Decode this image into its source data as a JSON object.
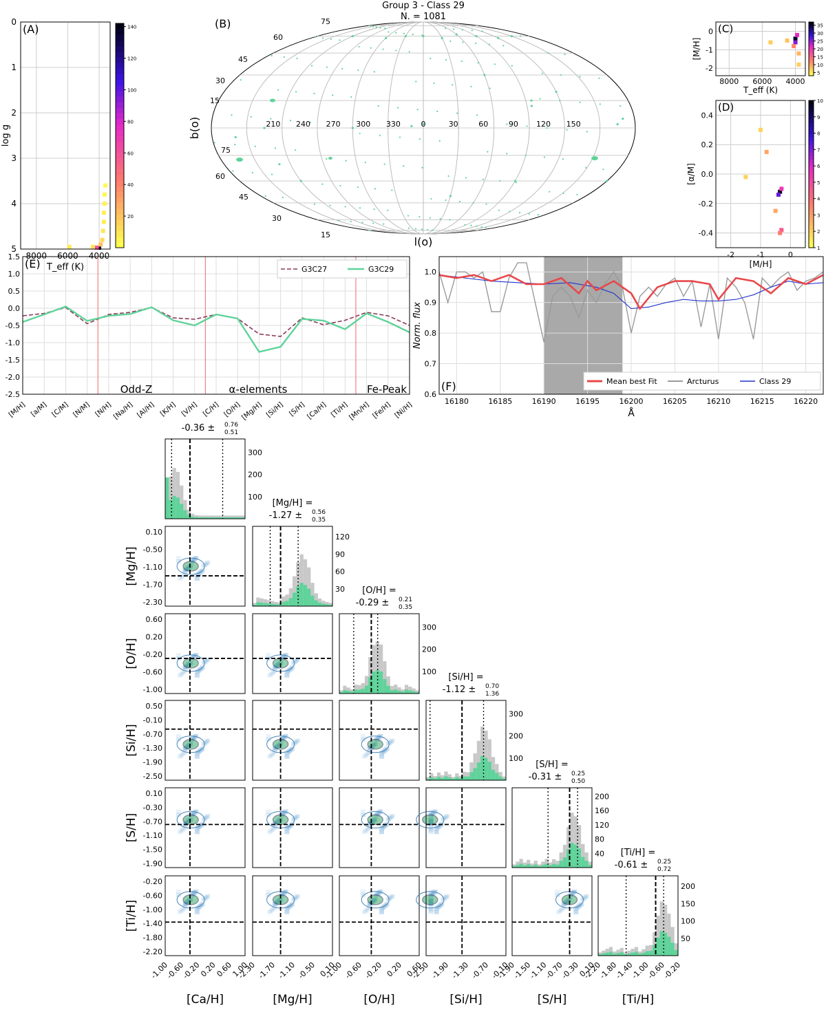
{
  "figure": {
    "title_line1": "Group 3 - Class 29",
    "title_line2": "N. = 1081"
  },
  "colors": {
    "green": "#5fd39a",
    "green_dark": "#2ca25f",
    "maroon": "#8b3a5a",
    "red_fit": "#e8474a",
    "grey_line": "#9a9a9a",
    "blue_line": "#2233cc",
    "shade": "#a9a9a9",
    "vline_red": "#f08080"
  },
  "chart_data": [
    {
      "panel": "A",
      "type": "heatmap",
      "xlabel": "T_eff (K)",
      "ylabel": "log g",
      "xlim": [
        9000,
        3300
      ],
      "ylim": [
        0,
        5
      ],
      "xticks": [
        "8000",
        "6000",
        "4000"
      ],
      "yticks": [
        "0",
        "1",
        "2",
        "3",
        "4",
        "5"
      ],
      "colorbar": {
        "min": 0,
        "max": 142,
        "ticks": [
          "20",
          "40",
          "60",
          "80",
          "100",
          "120",
          "140"
        ]
      },
      "cells": [
        {
          "x": 4000,
          "y": 4.97,
          "v": 140
        },
        {
          "x": 4150,
          "y": 4.97,
          "v": 60
        },
        {
          "x": 3900,
          "y": 4.9,
          "v": 20
        },
        {
          "x": 3800,
          "y": 4.8,
          "v": 12
        },
        {
          "x": 3750,
          "y": 4.6,
          "v": 8
        },
        {
          "x": 3700,
          "y": 4.4,
          "v": 6
        },
        {
          "x": 3700,
          "y": 4.2,
          "v": 5
        },
        {
          "x": 3650,
          "y": 4.0,
          "v": 4
        },
        {
          "x": 3650,
          "y": 3.8,
          "v": 3
        },
        {
          "x": 3600,
          "y": 3.6,
          "v": 2
        },
        {
          "x": 5900,
          "y": 4.95,
          "v": 6
        },
        {
          "x": 4400,
          "y": 4.95,
          "v": 8
        }
      ]
    },
    {
      "panel": "B",
      "type": "scatter",
      "projection": "Mollweide",
      "xlabel": "l(o)",
      "ylabel": "b(o)",
      "lon_labels": [
        "150",
        "120",
        "90",
        "60",
        "30",
        "0",
        "330",
        "300",
        "270",
        "240",
        "210"
      ],
      "lat_labels_top": [
        "75",
        "60",
        "45",
        "30",
        "15"
      ],
      "lat_labels_bottom": [
        "75",
        "60",
        "45",
        "30",
        "15"
      ],
      "points_lon_lat": [
        [
          150,
          60
        ],
        [
          120,
          58
        ],
        [
          90,
          60
        ],
        [
          30,
          58
        ],
        [
          0,
          60
        ],
        [
          330,
          60
        ],
        [
          300,
          58
        ],
        [
          240,
          60
        ],
        [
          60,
          62
        ],
        [
          170,
          5
        ],
        [
          165,
          2
        ],
        [
          120,
          20
        ],
        [
          95,
          15
        ],
        [
          94,
          12
        ],
        [
          60,
          30
        ],
        [
          350,
          1
        ],
        [
          0,
          2
        ],
        [
          300,
          0
        ],
        [
          225,
          0
        ],
        [
          180,
          -30
        ],
        [
          90,
          -30
        ],
        [
          30,
          -40
        ],
        [
          240,
          -30
        ],
        [
          200,
          -5
        ],
        [
          230,
          -20
        ]
      ]
    },
    {
      "panel": "C",
      "type": "heatmap",
      "xlabel": "T_eff (K)",
      "ylabel": "[M/H]",
      "xlim": [
        8800,
        3400
      ],
      "ylim": [
        -2.4,
        0.5
      ],
      "xticks": [
        "8000",
        "6000",
        "4000"
      ],
      "yticks": [
        "0",
        "-1",
        "-2"
      ],
      "colorbar": {
        "min": 3,
        "max": 37,
        "ticks": [
          "5",
          "10",
          "15",
          "20",
          "25",
          "30",
          "35"
        ]
      },
      "cells": [
        {
          "x": 4000,
          "y": -0.4,
          "v": 36
        },
        {
          "x": 4000,
          "y": -0.6,
          "v": 25
        },
        {
          "x": 3900,
          "y": -0.2,
          "v": 20
        },
        {
          "x": 4100,
          "y": -0.8,
          "v": 10
        },
        {
          "x": 3800,
          "y": -1.2,
          "v": 6
        },
        {
          "x": 3800,
          "y": -1.8,
          "v": 4
        },
        {
          "x": 5500,
          "y": -0.6,
          "v": 4
        },
        {
          "x": 4500,
          "y": -0.5,
          "v": 5
        }
      ]
    },
    {
      "panel": "D",
      "type": "heatmap",
      "xlabel": "[M/H]",
      "ylabel": "[α/M]",
      "xlim": [
        -2.5,
        0.5
      ],
      "ylim": [
        -0.5,
        0.5
      ],
      "xticks": [
        "-2",
        "-1",
        "0"
      ],
      "yticks": [
        "0.4",
        "0.2",
        "0.0",
        "-0.2",
        "-0.4"
      ],
      "colorbar": {
        "min": 1,
        "max": 10,
        "ticks": [
          "1",
          "2",
          "3",
          "4",
          "5",
          "6",
          "7",
          "8",
          "9",
          "10"
        ]
      },
      "cells": [
        {
          "x": -0.35,
          "y": -0.12,
          "v": 10
        },
        {
          "x": -0.4,
          "y": -0.14,
          "v": 7
        },
        {
          "x": -0.3,
          "y": -0.1,
          "v": 5
        },
        {
          "x": -0.3,
          "y": -0.38,
          "v": 4
        },
        {
          "x": -0.35,
          "y": -0.4,
          "v": 3
        },
        {
          "x": -0.8,
          "y": 0.15,
          "v": 2
        },
        {
          "x": -1.0,
          "y": 0.3,
          "v": 1
        },
        {
          "x": -1.5,
          "y": -0.02,
          "v": 1
        },
        {
          "x": -0.5,
          "y": -0.25,
          "v": 2
        }
      ]
    },
    {
      "panel": "E",
      "type": "line",
      "categories": [
        "[M/H]",
        "[a/M]",
        "[C/M]",
        "[N/M]",
        "[N/H]",
        "[Na/H]",
        "[Al/H]",
        "[K/H]",
        "[V/H]",
        "[C/H]",
        "[O/H]",
        "[Mg/H]",
        "[Si/H]",
        "[S/H]",
        "[Ca/H]",
        "[Ti/H]",
        "[Mn/H]",
        "[Fe/H]",
        "[Ni/H]"
      ],
      "ylim": [
        -2.5,
        1.5
      ],
      "yticks": [
        "1.5",
        "1.0",
        "0.5",
        "0.0",
        "-0.5",
        "-1.0",
        "-1.5",
        "-2.0",
        "-2.5"
      ],
      "group_labels": [
        "Odd-Z",
        "α-elements",
        "Fe-Peak"
      ],
      "series": [
        {
          "name": "G3C27",
          "values": [
            -0.22,
            -0.15,
            0.02,
            -0.45,
            -0.18,
            -0.12,
            0.02,
            -0.28,
            -0.32,
            -0.18,
            -0.3,
            -0.75,
            -0.82,
            -0.28,
            -0.48,
            -0.35,
            -0.12,
            -0.22,
            -0.5
          ]
        },
        {
          "name": "G3C29",
          "values": [
            -0.4,
            -0.18,
            0.05,
            -0.37,
            -0.22,
            -0.17,
            0.03,
            -0.35,
            -0.5,
            -0.18,
            -0.3,
            -1.27,
            -1.12,
            -0.31,
            -0.36,
            -0.61,
            -0.15,
            -0.4,
            -0.7
          ]
        }
      ]
    },
    {
      "panel": "F",
      "type": "line",
      "xlabel": "Å",
      "ylabel": "Norm. flux",
      "xlim": [
        16178,
        16222
      ],
      "ylim": [
        0.6,
        1.05
      ],
      "xticks": [
        "16180",
        "16185",
        "16190",
        "16195",
        "16200",
        "16205",
        "16210",
        "16215",
        "16220"
      ],
      "yticks": [
        "1.0",
        "0.9",
        "0.8",
        "0.7",
        "0.6"
      ],
      "shaded_range": [
        16190,
        16199
      ],
      "series": [
        {
          "name": "Mean best Fit",
          "x": [
            16178,
            16180,
            16182,
            16184,
            16186,
            16188,
            16190,
            16192,
            16194,
            16195,
            16196,
            16198,
            16200,
            16201,
            16203,
            16205,
            16207,
            16209,
            16210,
            16212,
            16214,
            16216,
            16218,
            16220,
            16222
          ],
          "values": [
            0.99,
            0.98,
            0.99,
            0.97,
            0.99,
            0.96,
            0.96,
            0.98,
            0.93,
            0.97,
            0.94,
            0.97,
            0.93,
            0.88,
            0.95,
            0.97,
            0.97,
            0.96,
            0.91,
            0.98,
            0.97,
            0.93,
            0.98,
            0.96,
            0.99
          ]
        },
        {
          "name": "Arcturus",
          "x": [
            16178,
            16179,
            16180,
            16181,
            16182,
            16183,
            16184,
            16185,
            16186,
            16187,
            16188,
            16189,
            16190,
            16191,
            16192,
            16193,
            16194,
            16195,
            16196,
            16197,
            16198,
            16199,
            16200,
            16201,
            16202,
            16203,
            16204,
            16205,
            16206,
            16207,
            16208,
            16209,
            16210,
            16211,
            16212,
            16213,
            16214,
            16215,
            16216,
            16217,
            16218,
            16219,
            16220,
            16221,
            16222
          ],
          "values": [
            1.0,
            0.9,
            1.0,
            1.0,
            0.98,
            1.0,
            0.87,
            0.87,
            0.98,
            1.03,
            1.03,
            0.9,
            0.77,
            0.92,
            0.95,
            0.92,
            0.85,
            0.94,
            0.9,
            0.96,
            1.0,
            0.95,
            0.8,
            0.92,
            0.95,
            0.92,
            0.96,
            0.98,
            0.92,
            0.97,
            0.82,
            0.96,
            0.78,
            0.98,
            0.95,
            0.9,
            0.78,
            0.98,
            0.95,
            0.98,
            1.0,
            0.94,
            0.97,
            0.98,
            1.0
          ]
        },
        {
          "name": "Class 29",
          "x": [
            16178,
            16181,
            16184,
            16187,
            16190,
            16193,
            16196,
            16198,
            16200,
            16202,
            16204,
            16206,
            16208,
            16210,
            16212,
            16214,
            16216,
            16218,
            16220,
            16222
          ],
          "values": [
            0.99,
            0.98,
            0.97,
            0.965,
            0.96,
            0.965,
            0.95,
            0.93,
            0.88,
            0.885,
            0.9,
            0.91,
            0.905,
            0.905,
            0.91,
            0.925,
            0.95,
            0.97,
            0.96,
            0.965
          ]
        }
      ]
    },
    {
      "panel": "corner",
      "type": "histogram",
      "params": [
        "[Ca/H]",
        "[Mg/H]",
        "[O/H]",
        "[Si/H]",
        "[S/H]",
        "[Ti/H]"
      ],
      "x_ticks": [
        [
          "-1.00",
          "-0.60",
          "-0.20",
          "0.20",
          "0.60",
          "1.00"
        ],
        [
          "-2.30",
          "-1.70",
          "-1.10",
          "-0.50",
          "0.10"
        ],
        [
          "-1.00",
          "-0.60",
          "-0.20",
          "0.20",
          "0.60"
        ],
        [
          "-2.50",
          "-1.90",
          "-1.30",
          "-0.70",
          "-0.10"
        ],
        [
          "-1.90",
          "-1.50",
          "-1.10",
          "-0.70",
          "-0.30",
          "0.10"
        ],
        [
          "-2.20",
          "-1.80",
          "-1.40",
          "-1.00",
          "-0.60",
          "-0.20"
        ]
      ],
      "y_ticks": {
        "[Mg/H]": [
          "0.10",
          "-0.50",
          "-1.10",
          "-1.70",
          "-2.30"
        ],
        "[O/H]": [
          "0.60",
          "0.20",
          "-0.20",
          "-0.60",
          "-1.00"
        ],
        "[Si/H]": [
          "0.50",
          "-0.10",
          "-0.70",
          "-1.30",
          "-1.90",
          "-2.50"
        ],
        "[S/H]": [
          "0.10",
          "-0.30",
          "-0.70",
          "-1.10",
          "-1.50",
          "-1.90"
        ],
        "[Ti/H]": [
          "-0.20",
          "-0.60",
          "-1.00",
          "-1.40",
          "-1.80",
          "-2.20"
        ]
      },
      "hist_counts_ticks": [
        [
          "100",
          "200",
          "300"
        ],
        [
          "30",
          "60",
          "90",
          "120"
        ],
        [
          "100",
          "200",
          "300"
        ],
        [
          "100",
          "200",
          "300"
        ],
        [
          "40",
          "80",
          "120",
          "160",
          "200"
        ],
        [
          "50",
          "100",
          "150",
          "200"
        ]
      ],
      "titles": [
        {
          "label": "",
          "median": "-0.36",
          "plus": "0.76",
          "minus": "0.51"
        },
        {
          "label": "[Mg/H] =",
          "median": "-1.27",
          "plus": "0.56",
          "minus": "0.35"
        },
        {
          "label": "[O/H] =",
          "median": "-0.29",
          "plus": "0.21",
          "minus": "0.35"
        },
        {
          "label": "[Si/H] =",
          "median": "-1.12",
          "plus": "0.70",
          "minus": "1.36"
        },
        {
          "label": "[S/H] =",
          "median": "-0.31",
          "plus": "0.25",
          "minus": "0.50"
        },
        {
          "label": "[Ti/H] =",
          "median": "-0.61",
          "plus": "0.25",
          "minus": "0.72"
        }
      ]
    }
  ]
}
